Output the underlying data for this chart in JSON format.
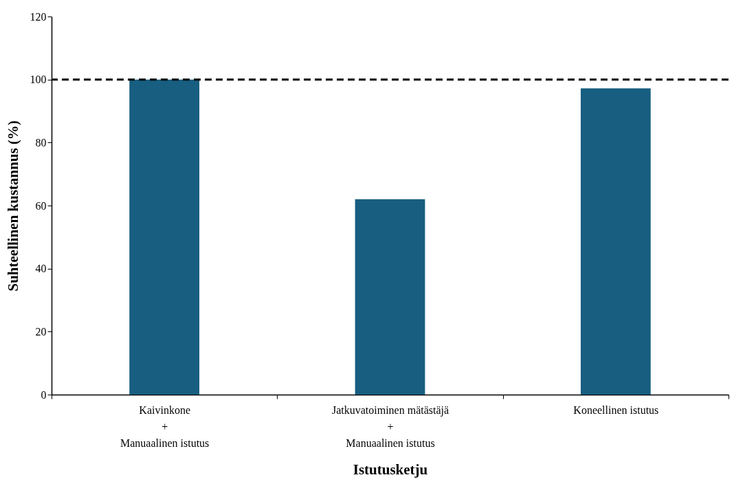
{
  "chart_data": {
    "type": "bar",
    "xlabel": "Istutusketju",
    "ylabel": "Suhteellinen kustannus (%)",
    "categories": [
      "Kaivinkone\n+\nManuaalinen istutus",
      "Jatkuvatoiminen mätästäjä\n+\nManuaalinen istutus",
      "Koneellinen istutus"
    ],
    "values": [
      100,
      62,
      97.2
    ],
    "color": "#175e80",
    "ylim": [
      0,
      120
    ],
    "yticks": [
      0,
      20,
      40,
      60,
      80,
      100,
      120
    ],
    "grid": false,
    "ref_lines": [
      {
        "axis": "y",
        "value": 100,
        "color": "#000000",
        "line_style": "dashed"
      }
    ]
  }
}
